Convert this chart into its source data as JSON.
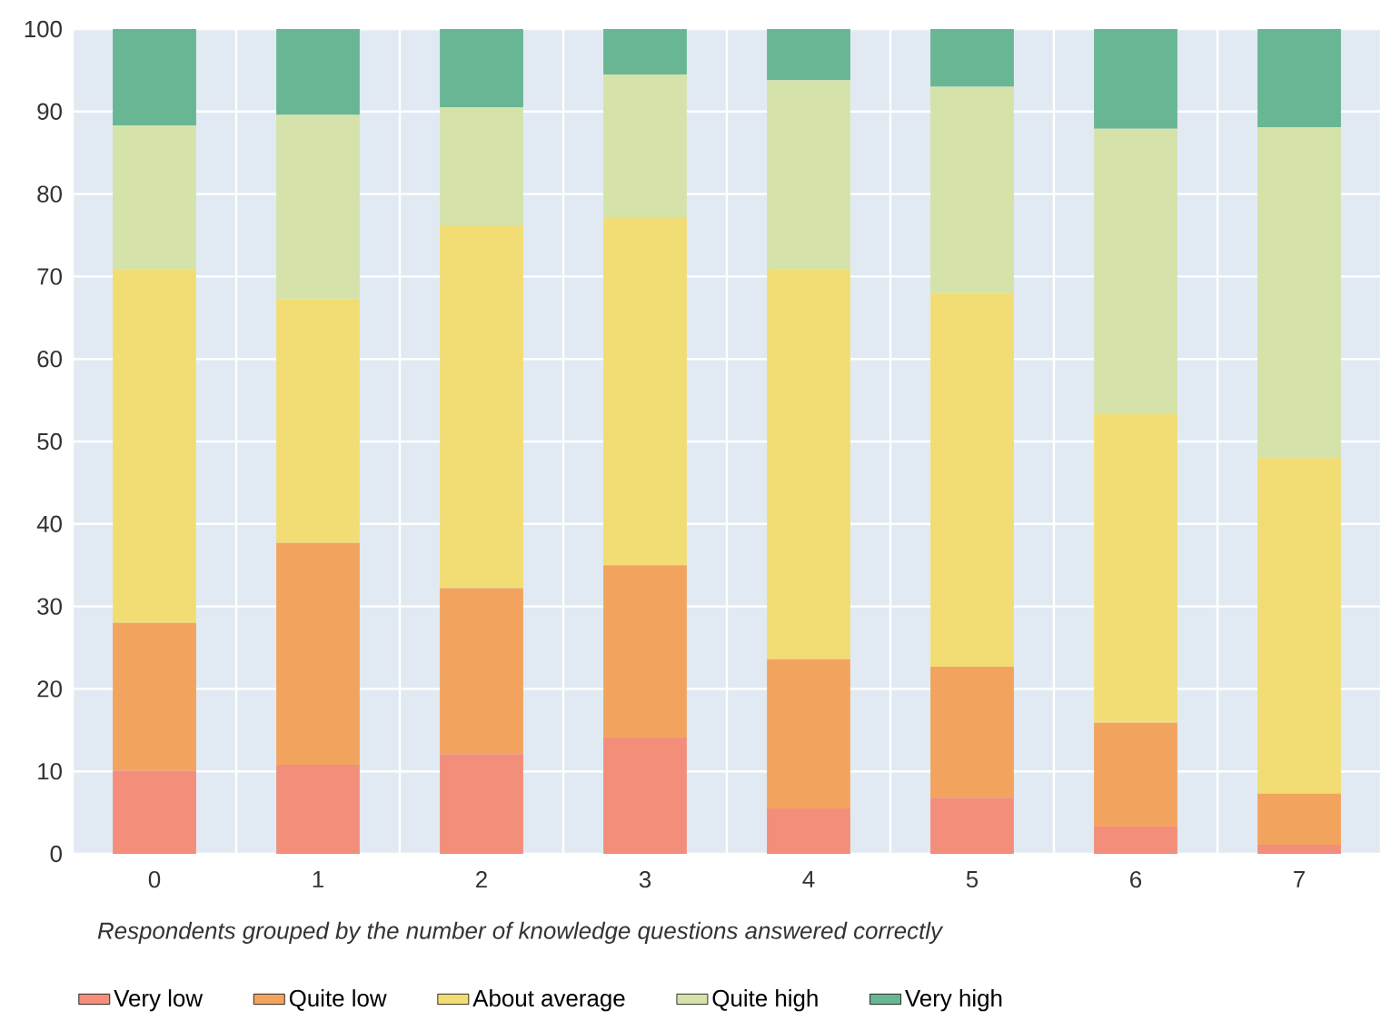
{
  "chart_data": {
    "type": "bar",
    "stacked": true,
    "xlabel": "Respondents grouped by the number of knowledge questions answered correctly",
    "categories": [
      "0",
      "1",
      "2",
      "3",
      "4",
      "5",
      "6",
      "7"
    ],
    "series": [
      {
        "name": "Very low",
        "color": "#f28e7a",
        "values": [
          10.1,
          10.8,
          12.1,
          14.1,
          5.5,
          6.8,
          3.3,
          1.1
        ]
      },
      {
        "name": "Quite low",
        "color": "#f2a45e",
        "values": [
          17.9,
          26.9,
          20.1,
          20.9,
          18.1,
          15.9,
          12.6,
          6.2
        ]
      },
      {
        "name": "About average",
        "color": "#f2dd75",
        "values": [
          42.9,
          29.5,
          44.0,
          42.1,
          47.3,
          45.3,
          37.4,
          40.7
        ]
      },
      {
        "name": "Quite high",
        "color": "#d5e3ab",
        "values": [
          17.4,
          22.4,
          14.3,
          17.4,
          22.9,
          25.0,
          34.6,
          40.1
        ]
      },
      {
        "name": "Very high",
        "color": "#68b693",
        "values": [
          11.7,
          10.4,
          9.5,
          5.5,
          6.2,
          7.0,
          12.1,
          11.9
        ]
      }
    ],
    "ylim": [
      0,
      100
    ],
    "yticks": [
      0,
      10,
      20,
      30,
      40,
      50,
      60,
      70,
      80,
      90,
      100
    ],
    "grid": true,
    "legend": "bottom"
  }
}
